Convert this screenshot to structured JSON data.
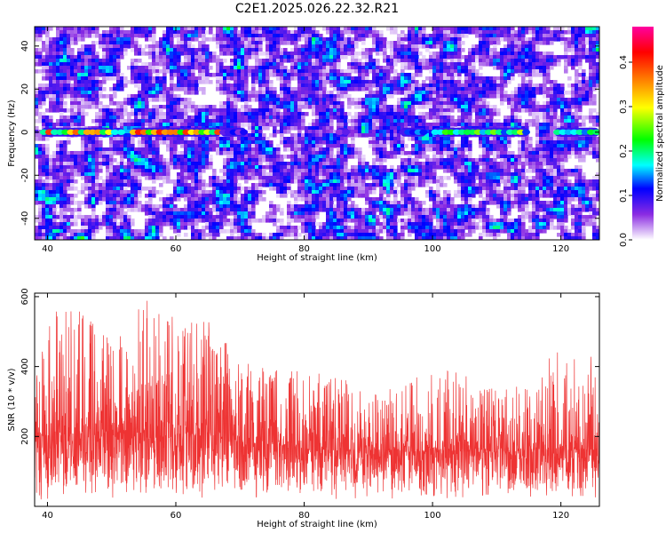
{
  "figure_title": "C2E1.2025.026.22.32.R21",
  "chart_data": [
    {
      "type": "heatmap",
      "title": "C2E1.2025.026.22.32.R21",
      "xlabel": "Height of straight line (km)",
      "ylabel": "Frequency (Hz)",
      "xlim": [
        38,
        126
      ],
      "ylim": [
        -50,
        49
      ],
      "x_ticks": [
        40,
        60,
        80,
        100,
        120
      ],
      "y_ticks": [
        -40,
        -20,
        0,
        20,
        40
      ],
      "colorbar": {
        "label": "Normalized spectral amplitude",
        "range": [
          0.0,
          0.48
        ],
        "ticks": [
          0.0,
          0.1,
          0.2,
          0.3,
          0.4
        ],
        "tick_labels": [
          "0.0",
          "0.1",
          "0.2",
          "0.3",
          "0.4"
        ]
      },
      "colormap_stops": [
        "#ffffff",
        "#8a2be2",
        "#0000ff",
        "#00ffff",
        "#00ff00",
        "#ffff00",
        "#ff8000",
        "#ff0000",
        "#ff00a0"
      ],
      "zero_frequency_band": {
        "frequency": 0,
        "segments": [
          {
            "x_start": 39,
            "x_end": 50,
            "peak": 0.4
          },
          {
            "x_start": 50,
            "x_end": 52,
            "peak": 0.18
          },
          {
            "x_start": 53,
            "x_end": 67,
            "peak": 0.42
          },
          {
            "x_start": 67,
            "x_end": 71,
            "peak": 0.12
          },
          {
            "x_start": 85,
            "x_end": 87,
            "peak": 0.1
          },
          {
            "x_start": 95,
            "x_end": 99,
            "peak": 0.18
          },
          {
            "x_start": 100,
            "x_end": 115,
            "peak": 0.28
          },
          {
            "x_start": 119,
            "x_end": 126,
            "peak": 0.22
          }
        ]
      },
      "background_level": 0.06
    },
    {
      "type": "line",
      "title": "",
      "xlabel": "Height of straight line (km)",
      "ylabel": "SNR (10 * v/v)",
      "xlim": [
        38,
        126
      ],
      "ylim": [
        0,
        610
      ],
      "x_ticks": [
        40,
        60,
        80,
        100,
        120
      ],
      "y_ticks": [
        200,
        400,
        600
      ],
      "series": [
        {
          "color": "#ee3333",
          "points_per_km": 30,
          "envelope": {
            "x": [
              38,
              42,
              46,
              50,
              55,
              60,
              64,
              70,
              75,
              80,
              85,
              90,
              95,
              100,
              105,
              110,
              115,
              120,
              126
            ],
            "mean": [
              200,
              205,
              210,
              205,
              210,
              200,
              210,
              185,
              175,
              165,
              160,
              155,
              155,
              160,
              165,
              155,
              160,
              165,
              160
            ],
            "max": [
              430,
              590,
              570,
              480,
              600,
              540,
              550,
              430,
              390,
              390,
              370,
              360,
              360,
              410,
              380,
              330,
              360,
              460,
              420
            ],
            "min": [
              10,
              20,
              15,
              20,
              25,
              20,
              20,
              15,
              20,
              20,
              15,
              15,
              15,
              20,
              15,
              20,
              15,
              20,
              20
            ]
          }
        }
      ]
    }
  ]
}
